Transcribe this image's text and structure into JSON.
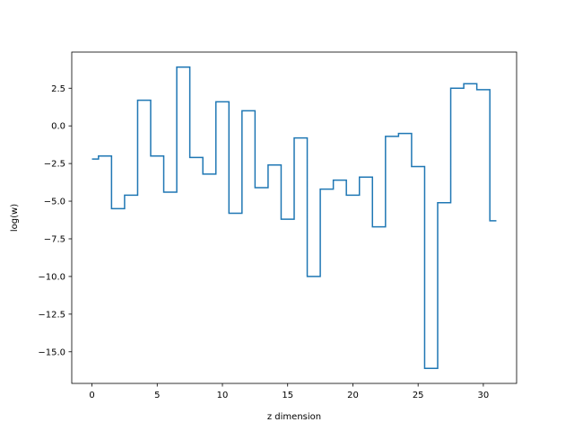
{
  "chart_data": {
    "type": "line",
    "drawstyle": "steps-mid",
    "title": "",
    "xlabel": "z dimension",
    "ylabel": "log(w)",
    "xlim": [
      -1.55,
      32.55
    ],
    "ylim": [
      -17.1,
      4.9
    ],
    "x_ticks": [
      0,
      5,
      10,
      15,
      20,
      25,
      30
    ],
    "y_ticks": [
      2.5,
      0.0,
      -2.5,
      -5.0,
      -7.5,
      -10.0,
      -12.5,
      -15.0
    ],
    "y_tick_labels": [
      "2.5",
      "0.0",
      "−2.5",
      "−5.0",
      "−7.5",
      "−10.0",
      "−12.5",
      "−15.0"
    ],
    "grid": false,
    "legend": false,
    "line_color": "#1f77b4",
    "series": [
      {
        "x": [
          0,
          1,
          2,
          3,
          4,
          5,
          6,
          7,
          8,
          9,
          10,
          11,
          12,
          13,
          14,
          15,
          16,
          17,
          18,
          19,
          20,
          21,
          22,
          23,
          24,
          25,
          26,
          27,
          28,
          29,
          30,
          31
        ],
        "values": [
          -2.2,
          -2.0,
          -5.5,
          -4.6,
          1.7,
          -2.0,
          -4.4,
          3.9,
          -2.1,
          -3.2,
          1.6,
          -5.8,
          1.0,
          -4.1,
          -2.6,
          -6.2,
          -0.8,
          -10.0,
          -4.2,
          -3.6,
          -4.6,
          -3.4,
          -6.7,
          -0.7,
          -0.5,
          -2.7,
          -16.1,
          -5.1,
          2.5,
          2.8,
          2.4,
          -6.3
        ]
      }
    ]
  }
}
